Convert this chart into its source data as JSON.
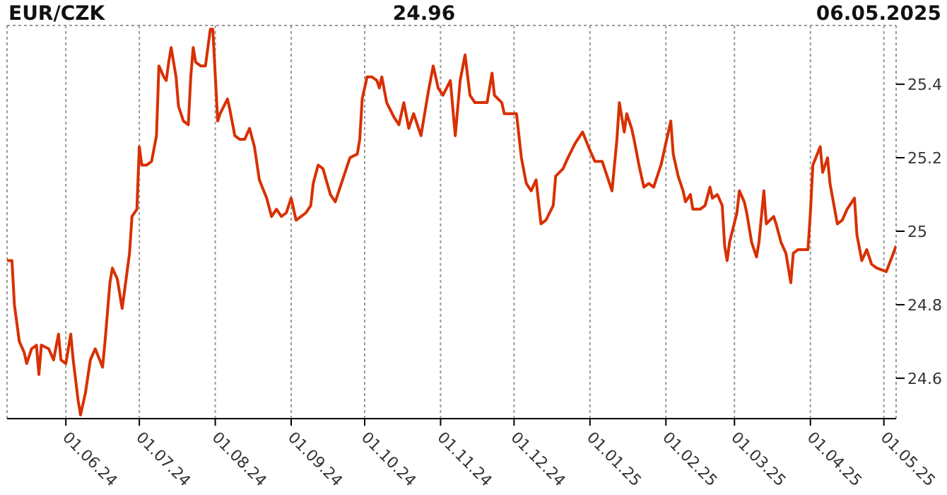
{
  "chart_data": {
    "type": "line",
    "title": "EUR/CZK",
    "annotations": [
      "24.96",
      "06.05.2025"
    ],
    "x": [
      "2024-05-08",
      "2024-05-10",
      "2024-05-11",
      "2024-05-13",
      "2024-05-15",
      "2024-05-16",
      "2024-05-18",
      "2024-05-20",
      "2024-05-21",
      "2024-05-22",
      "2024-05-25",
      "2024-05-27",
      "2024-05-29",
      "2024-05-30",
      "2024-06-01",
      "2024-06-03",
      "2024-06-04",
      "2024-06-06",
      "2024-06-07",
      "2024-06-09",
      "2024-06-11",
      "2024-06-13",
      "2024-06-16",
      "2024-06-17",
      "2024-06-19",
      "2024-06-20",
      "2024-06-22",
      "2024-06-24",
      "2024-06-25",
      "2024-06-27",
      "2024-06-28",
      "2024-06-30",
      "2024-07-01",
      "2024-07-02",
      "2024-07-04",
      "2024-07-06",
      "2024-07-08",
      "2024-07-09",
      "2024-07-11",
      "2024-07-12",
      "2024-07-13",
      "2024-07-14",
      "2024-07-16",
      "2024-07-17",
      "2024-07-19",
      "2024-07-21",
      "2024-07-22",
      "2024-07-23",
      "2024-07-24",
      "2024-07-26",
      "2024-07-28",
      "2024-07-29",
      "2024-07-30",
      "2024-07-31",
      "2024-08-02",
      "2024-08-03",
      "2024-08-06",
      "2024-08-07",
      "2024-08-09",
      "2024-08-11",
      "2024-08-13",
      "2024-08-15",
      "2024-08-17",
      "2024-08-19",
      "2024-08-22",
      "2024-08-24",
      "2024-08-26",
      "2024-08-28",
      "2024-08-30",
      "2024-09-01",
      "2024-09-03",
      "2024-09-07",
      "2024-09-09",
      "2024-09-10",
      "2024-09-12",
      "2024-09-14",
      "2024-09-17",
      "2024-09-19",
      "2024-09-21",
      "2024-09-24",
      "2024-09-25",
      "2024-09-28",
      "2024-09-29",
      "2024-09-30",
      "2024-10-02",
      "2024-10-04",
      "2024-10-06",
      "2024-10-07",
      "2024-10-08",
      "2024-10-10",
      "2024-10-13",
      "2024-10-15",
      "2024-10-17",
      "2024-10-19",
      "2024-10-21",
      "2024-10-24",
      "2024-10-27",
      "2024-10-29",
      "2024-10-31",
      "2024-11-02",
      "2024-11-05",
      "2024-11-07",
      "2024-11-09",
      "2024-11-11",
      "2024-11-13",
      "2024-11-15",
      "2024-11-20",
      "2024-11-22",
      "2024-11-23",
      "2024-11-26",
      "2024-11-27",
      "2024-12-02",
      "2024-12-04",
      "2024-12-06",
      "2024-12-08",
      "2024-12-10",
      "2024-12-12",
      "2024-12-14",
      "2024-12-17",
      "2024-12-18",
      "2024-12-21",
      "2024-12-23",
      "2024-12-26",
      "2024-12-29",
      "2025-01-01",
      "2025-01-03",
      "2025-01-06",
      "2025-01-09",
      "2025-01-10",
      "2025-01-12",
      "2025-01-13",
      "2025-01-15",
      "2025-01-16",
      "2025-01-18",
      "2025-01-19",
      "2025-01-21",
      "2025-01-23",
      "2025-01-25",
      "2025-01-27",
      "2025-01-28",
      "2025-01-30",
      "2025-02-03",
      "2025-02-04",
      "2025-02-06",
      "2025-02-08",
      "2025-02-09",
      "2025-02-11",
      "2025-02-12",
      "2025-02-15",
      "2025-02-17",
      "2025-02-19",
      "2025-02-20",
      "2025-02-22",
      "2025-02-24",
      "2025-02-25",
      "2025-02-26",
      "2025-02-27",
      "2025-03-02",
      "2025-03-03",
      "2025-03-05",
      "2025-03-06",
      "2025-03-08",
      "2025-03-10",
      "2025-03-11",
      "2025-03-13",
      "2025-03-14",
      "2025-03-17",
      "2025-03-18",
      "2025-03-20",
      "2025-03-22",
      "2025-03-24",
      "2025-03-25",
      "2025-03-27",
      "2025-03-31",
      "2025-04-01",
      "2025-04-02",
      "2025-04-05",
      "2025-04-06",
      "2025-04-08",
      "2025-04-09",
      "2025-04-12",
      "2025-04-14",
      "2025-04-16",
      "2025-04-19",
      "2025-04-20",
      "2025-04-22",
      "2025-04-24",
      "2025-04-26",
      "2025-04-28",
      "2025-05-02",
      "2025-05-06"
    ],
    "series": [
      {
        "color": "#d83000",
        "values": [
          24.92,
          24.92,
          24.8,
          24.7,
          24.67,
          24.64,
          24.68,
          24.69,
          24.61,
          24.69,
          24.68,
          24.65,
          24.72,
          24.65,
          24.64,
          24.72,
          24.65,
          24.54,
          24.5,
          24.56,
          24.65,
          24.68,
          24.63,
          24.7,
          24.86,
          24.9,
          24.87,
          24.79,
          24.84,
          24.94,
          25.04,
          25.06,
          25.23,
          25.18,
          25.18,
          25.19,
          25.26,
          25.45,
          25.42,
          25.41,
          25.46,
          25.5,
          25.42,
          25.34,
          25.3,
          25.29,
          25.42,
          25.5,
          25.46,
          25.45,
          25.45,
          25.5,
          25.55,
          25.55,
          25.3,
          25.32,
          25.36,
          25.33,
          25.26,
          25.25,
          25.25,
          25.28,
          25.23,
          25.14,
          25.09,
          25.04,
          25.06,
          25.04,
          25.05,
          25.09,
          25.03,
          25.05,
          25.07,
          25.13,
          25.18,
          25.17,
          25.1,
          25.08,
          25.12,
          25.18,
          25.2,
          25.21,
          25.25,
          25.36,
          25.42,
          25.42,
          25.41,
          25.39,
          25.42,
          25.35,
          25.31,
          25.29,
          25.35,
          25.28,
          25.32,
          25.26,
          25.38,
          25.45,
          25.39,
          25.37,
          25.41,
          25.26,
          25.41,
          25.48,
          25.37,
          25.35,
          25.35,
          25.43,
          25.37,
          25.35,
          25.32,
          25.32,
          25.2,
          25.13,
          25.11,
          25.14,
          25.02,
          25.03,
          25.07,
          25.15,
          25.17,
          25.2,
          25.24,
          25.27,
          25.22,
          25.19,
          25.19,
          25.13,
          25.11,
          25.25,
          25.35,
          25.27,
          25.32,
          25.28,
          25.25,
          25.18,
          25.12,
          25.13,
          25.12,
          25.14,
          25.18,
          25.3,
          25.21,
          25.15,
          25.11,
          25.08,
          25.1,
          25.06,
          25.06,
          25.07,
          25.12,
          25.09,
          25.1,
          25.07,
          24.96,
          24.92,
          24.97,
          25.05,
          25.11,
          25.08,
          25.05,
          24.97,
          24.93,
          24.97,
          25.11,
          25.02,
          25.04,
          25.02,
          24.97,
          24.94,
          24.86,
          24.94,
          24.95,
          24.95,
          25.05,
          25.18,
          25.23,
          25.16,
          25.2,
          25.13,
          25.02,
          25.03,
          25.06,
          25.09,
          24.99,
          24.92,
          24.95,
          24.91,
          24.9,
          24.89,
          24.96
        ]
      }
    ],
    "xlim": [
      "2024-05-08",
      "2025-05-06"
    ],
    "xticks": [
      {
        "value": "2024-06-01",
        "label": "01.06.24"
      },
      {
        "value": "2024-07-01",
        "label": "01.07.24"
      },
      {
        "value": "2024-08-01",
        "label": "01.08.24"
      },
      {
        "value": "2024-09-01",
        "label": "01.09.24"
      },
      {
        "value": "2024-10-01",
        "label": "01.10.24"
      },
      {
        "value": "2024-11-01",
        "label": "01.11.24"
      },
      {
        "value": "2024-12-01",
        "label": "01.12.24"
      },
      {
        "value": "2025-01-01",
        "label": "01.01.25"
      },
      {
        "value": "2025-02-01",
        "label": "01.02.25"
      },
      {
        "value": "2025-03-01",
        "label": "01.03.25"
      },
      {
        "value": "2025-04-01",
        "label": "01.04.25"
      },
      {
        "value": "2025-05-01",
        "label": "01.05.25"
      }
    ],
    "ylim": [
      24.49,
      25.56
    ],
    "yticks": [
      24.6,
      24.8,
      {
        "value": 25,
        "label": "25"
      },
      25.2,
      25.4
    ],
    "grid": true,
    "line_style": "solid",
    "marker": "none"
  }
}
